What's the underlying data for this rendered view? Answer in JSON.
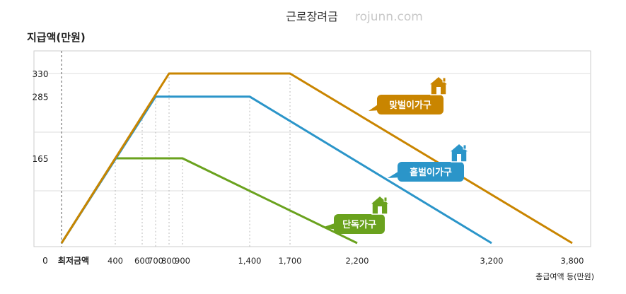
{
  "chart_data": {
    "type": "line",
    "title": "근로장려금",
    "watermark": "rojunn.com",
    "ylabel": "지급액(만원)",
    "xlabel": "총급여액 등(만원)",
    "x_origin_labels": [
      "0",
      "최저금액"
    ],
    "xlim": [
      0,
      3800
    ],
    "ylim": [
      0,
      380
    ],
    "xticks": [
      400,
      600,
      700,
      800,
      900,
      1400,
      1700,
      2200,
      3200,
      3800
    ],
    "xtick_labels": [
      "400",
      "600",
      "700",
      "800",
      "900",
      "1,400",
      "1,700",
      "2,200",
      "3,200",
      "3,800"
    ],
    "yticks": [
      165,
      285,
      330
    ],
    "ytick_labels": [
      "165",
      "285",
      "330"
    ],
    "grid": true,
    "colors": {
      "single": "#6aa21e",
      "single_earner": "#2b95c9",
      "dual_earner": "#c98500",
      "grid": "#dddddd",
      "axis_box": "#cccccc"
    },
    "icons": [
      "house-icon"
    ],
    "series": [
      {
        "name": "단독가구",
        "color": "#6aa21e",
        "x": [
          0,
          400,
          900,
          2200
        ],
        "y": [
          0,
          165,
          165,
          0
        ]
      },
      {
        "name": "홑벌이가구",
        "color": "#2b95c9",
        "x": [
          0,
          700,
          1400,
          3200
        ],
        "y": [
          0,
          285,
          285,
          0
        ]
      },
      {
        "name": "맞벌이가구",
        "color": "#c98500",
        "x": [
          0,
          800,
          1700,
          3800
        ],
        "y": [
          0,
          330,
          330,
          0
        ]
      }
    ]
  }
}
